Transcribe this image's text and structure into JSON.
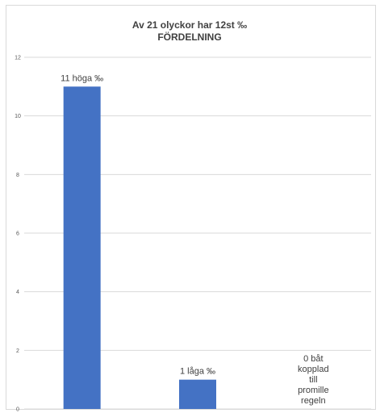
{
  "chart_data": {
    "type": "bar",
    "title_lines": [
      "Av 21 olyckor har 12st ‰",
      "FÖRDELNING"
    ],
    "categories": [
      "",
      "",
      ""
    ],
    "values": [
      11,
      1,
      0
    ],
    "data_labels": [
      [
        "11 höga ‰"
      ],
      [
        "1 låga ‰"
      ],
      [
        "0 båt",
        "kopplad",
        "till",
        "promille",
        "regeln"
      ]
    ],
    "y_ticks": [
      "0",
      "2",
      "4",
      "6",
      "8",
      "10",
      "12"
    ],
    "ylim": [
      0,
      12
    ],
    "grid": true,
    "legend": "none",
    "colors": {
      "bar": "#4472c4",
      "grid": "#d9d9d9",
      "text": "#404040"
    }
  }
}
